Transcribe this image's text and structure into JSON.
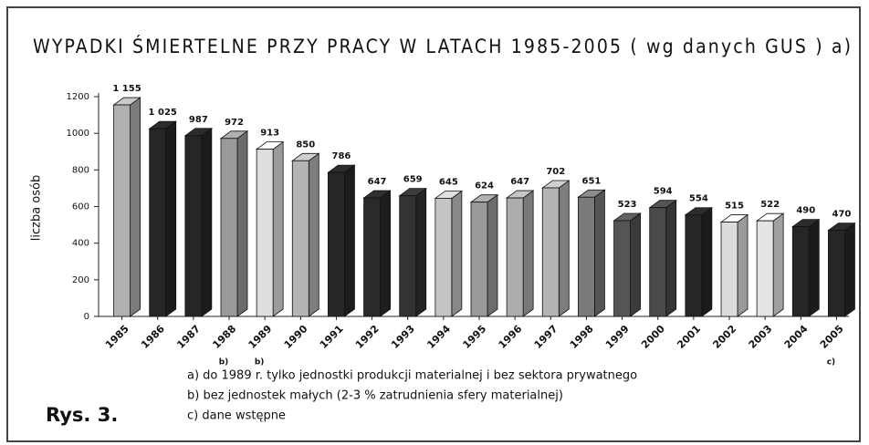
{
  "chart_data": {
    "type": "bar3d",
    "title": "WYPADKI ŚMIERTELNE PRZY PRACY W  LATACH 1985-2005 ( wg danych GUS )  a)",
    "y_label": "liczba osób",
    "categories": [
      "1985",
      "1986",
      "1987",
      "1988",
      "1989",
      "1990",
      "1991",
      "1992",
      "1993",
      "1994",
      "1995",
      "1996",
      "1997",
      "1998",
      "1999",
      "2000",
      "2001",
      "2002",
      "2003",
      "2004",
      "2005"
    ],
    "values": [
      1155,
      1025,
      987,
      972,
      913,
      850,
      786,
      647,
      659,
      645,
      624,
      647,
      702,
      651,
      523,
      594,
      554,
      515,
      522,
      490,
      470
    ],
    "value_labels": [
      "1 155",
      "1 025",
      "987",
      "972",
      "913",
      "850",
      "786",
      "647",
      "659",
      "645",
      "624",
      "647",
      "702",
      "651",
      "523",
      "594",
      "554",
      "515",
      "522",
      "490",
      "470"
    ],
    "colors": [
      "#b0b0b0",
      "#262626",
      "#262626",
      "#9a9a9a",
      "#dedede",
      "#b4b4b4",
      "#262626",
      "#2a2a2a",
      "#333333",
      "#c4c4c4",
      "#9a9a9a",
      "#acacac",
      "#b4b4b4",
      "#7a7a7a",
      "#555555",
      "#4a4a4a",
      "#262626",
      "#dcdcdc",
      "#e4e4e4",
      "#262626",
      "#262626"
    ],
    "ylim": [
      0,
      1200
    ],
    "yticks": [
      0,
      200,
      400,
      600,
      800,
      1000,
      1200
    ],
    "category_notes": [
      {
        "category": "1988",
        "text": "b)"
      },
      {
        "category": "1989",
        "text": "b)"
      },
      {
        "category": "2005",
        "text": "c)"
      }
    ],
    "notes": [
      "a) do 1989 r. tylko jednostki produkcji materialnej i bez sektora prywatnego",
      "b) bez jednostek małych (2-3 % zatrudnienia sfery materialnej)",
      "c) dane wstępne"
    ],
    "figure_label": "Rys. 3."
  }
}
